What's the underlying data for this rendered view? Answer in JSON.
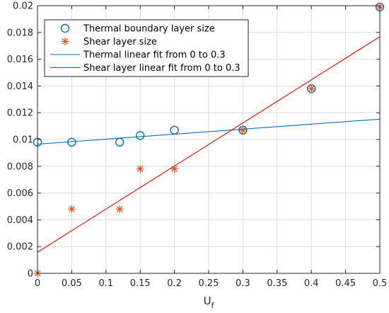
{
  "chart_data": {
    "type": "scatter",
    "title": "",
    "xlabel": "U",
    "xlabel_subscript": "f",
    "ylabel": "",
    "xlim": [
      0,
      0.5
    ],
    "ylim": [
      0,
      0.02
    ],
    "grid": true,
    "legend_position": "top-left",
    "x_ticks": [
      "0",
      "0.05",
      "0.1",
      "0.15",
      "0.2",
      "0.25",
      "0.3",
      "0.35",
      "0.4",
      "0.45",
      "0.5"
    ],
    "y_ticks": [
      "0",
      "0.002",
      "0.004",
      "0.006",
      "0.008",
      "0.01",
      "0.012",
      "0.014",
      "0.016",
      "0.018",
      "0.02"
    ],
    "series": [
      {
        "name": "Thermal boundary layer size",
        "kind": "scatter",
        "marker": "circle",
        "color": "#0072BD",
        "x": [
          0,
          0.05,
          0.12,
          0.15,
          0.2,
          0.3,
          0.4,
          0.5
        ],
        "y": [
          0.0098,
          0.0098,
          0.0098,
          0.0103,
          0.0107,
          0.0107,
          0.0138,
          0.0199
        ]
      },
      {
        "name": "Shear layer size",
        "kind": "scatter",
        "marker": "asterisk",
        "color": "#D95319",
        "x": [
          0,
          0.05,
          0.12,
          0.15,
          0.2,
          0.3,
          0.4,
          0.5
        ],
        "y": [
          0.0,
          0.0048,
          0.0048,
          0.0078,
          0.0078,
          0.0107,
          0.0138,
          0.0199
        ]
      },
      {
        "name": "Thermal linear fit from 0 to 0.3",
        "kind": "line",
        "color": "#0072BD",
        "x": [
          0,
          0.5
        ],
        "y": [
          0.00965,
          0.01152
        ]
      },
      {
        "name": "Shear layer linear fit from 0 to 0.3",
        "kind": "line",
        "color": "#FF0000",
        "x": [
          0,
          0.5
        ],
        "y": [
          0.00158,
          0.01768
        ]
      }
    ]
  }
}
